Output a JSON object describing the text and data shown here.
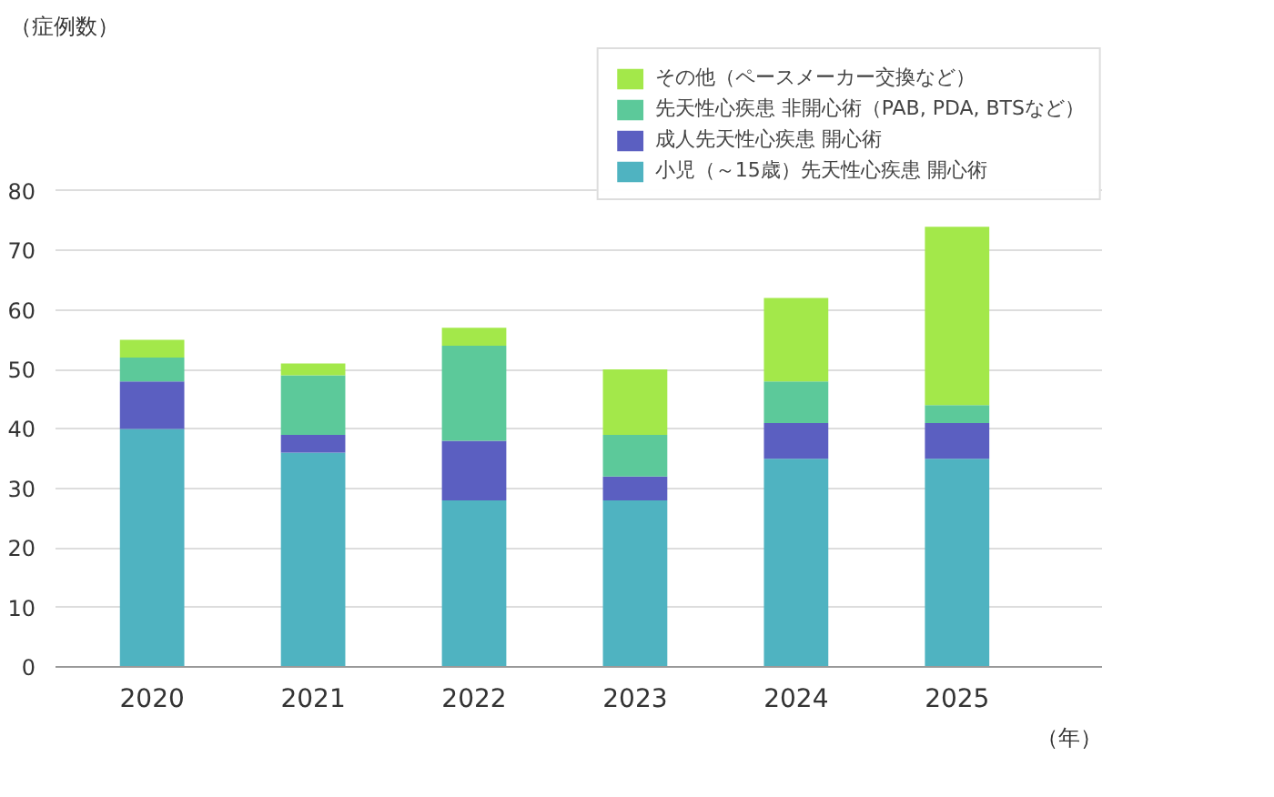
{
  "chart_data": {
    "type": "bar",
    "stacked": true,
    "xlabel": "（年）",
    "ylabel": "（症例数）",
    "categories": [
      "2020",
      "2021",
      "2022",
      "2023",
      "2024",
      "2025"
    ],
    "series": [
      {
        "name": "小児（～15歳）先天性心疾患 開心術",
        "color": "#4fb3c1",
        "values": [
          40,
          36,
          28,
          28,
          35,
          35
        ]
      },
      {
        "name": "成人先天性心疾患 開心術",
        "color": "#5b5fc1",
        "values": [
          8,
          3,
          10,
          4,
          6,
          6
        ]
      },
      {
        "name": "先天性心疾患 非開心術（PAB, PDA, BTSなど）",
        "color": "#5cc99a",
        "values": [
          4,
          10,
          16,
          7,
          7,
          3
        ]
      },
      {
        "name": "その他（ペースメーカー交換など）",
        "color": "#a3e84a",
        "values": [
          3,
          2,
          3,
          11,
          14,
          30
        ]
      }
    ],
    "ylim": [
      0,
      104
    ],
    "yticks": [
      0,
      10,
      20,
      30,
      40,
      50,
      60,
      70,
      80
    ],
    "grid": "y",
    "legend": "top right"
  }
}
